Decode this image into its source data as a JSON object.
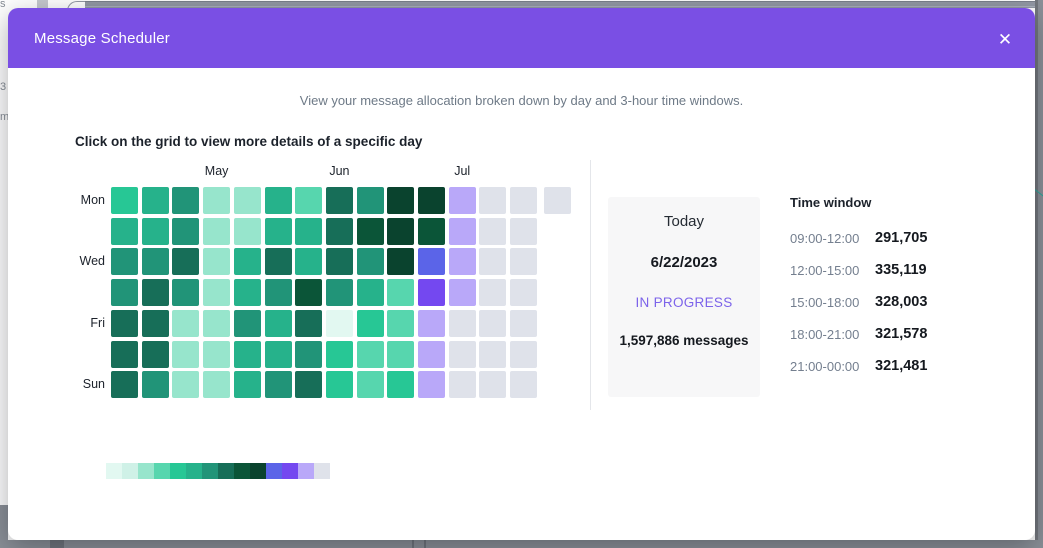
{
  "modal": {
    "title": "Message Scheduler",
    "close_icon": "✕",
    "subtitle": "View your message allocation broken down by day and 3-hour time windows.",
    "instruction": "Click on the grid to view more details of a specific day"
  },
  "heatmap": {
    "months": [
      {
        "label": "May",
        "col": 4
      },
      {
        "label": "Jun",
        "col": 8
      },
      {
        "label": "Jul",
        "col": 12
      }
    ],
    "day_labels": [
      {
        "label": "Mon",
        "row": 1
      },
      {
        "label": "Wed",
        "row": 3
      },
      {
        "label": "Fri",
        "row": 5
      },
      {
        "label": "Sun",
        "row": 7
      }
    ],
    "palette": [
      "#E2F8F1",
      "#CFF1E7",
      "#97E5CC",
      "#57D6AE",
      "#27C795",
      "#26B28B",
      "#219478",
      "#176E58",
      "#0B5538",
      "#0A432E",
      "#5B64E8",
      "#7448F0",
      "#B9A8F9",
      "#DFE2EA"
    ],
    "rows": [
      [
        5,
        6,
        7,
        3,
        3,
        6,
        4,
        8,
        7,
        10,
        10,
        13,
        14,
        14,
        14
      ],
      [
        6,
        6,
        7,
        3,
        3,
        6,
        6,
        8,
        9,
        10,
        9,
        13,
        14,
        14
      ],
      [
        7,
        7,
        8,
        3,
        6,
        8,
        6,
        8,
        7,
        10,
        11,
        13,
        14,
        14
      ],
      [
        7,
        8,
        7,
        3,
        6,
        7,
        9,
        7,
        6,
        4,
        12,
        13,
        14,
        14
      ],
      [
        8,
        8,
        3,
        3,
        7,
        6,
        8,
        1,
        5,
        4,
        13,
        14,
        14,
        14
      ],
      [
        8,
        8,
        3,
        3,
        6,
        6,
        7,
        5,
        4,
        4,
        13,
        14,
        14,
        14
      ],
      [
        8,
        7,
        3,
        3,
        6,
        7,
        8,
        5,
        4,
        5,
        13,
        14,
        14,
        14
      ]
    ]
  },
  "today_card": {
    "heading": "Today",
    "date": "6/22/2023",
    "status": "IN PROGRESS",
    "messages": "1,597,886 messages"
  },
  "time_windows": {
    "heading": "Time window",
    "rows": [
      {
        "window": "09:00-12:00",
        "value": "291,705"
      },
      {
        "window": "12:00-15:00",
        "value": "335,119"
      },
      {
        "window": "15:00-18:00",
        "value": "328,003"
      },
      {
        "window": "18:00-21:00",
        "value": "321,578"
      },
      {
        "window": "21:00-00:00",
        "value": "321,481"
      }
    ]
  },
  "background_fragments": {
    "top_left": "s",
    "left_1": "3",
    "left_2": "m"
  },
  "colors": {
    "header": "#7a4fe4",
    "status_purple": "#7c63ea",
    "empty_cell": "#DFE2EA",
    "backdrop_gray": "#8b9098",
    "card_bg": "#f7f7f8"
  }
}
